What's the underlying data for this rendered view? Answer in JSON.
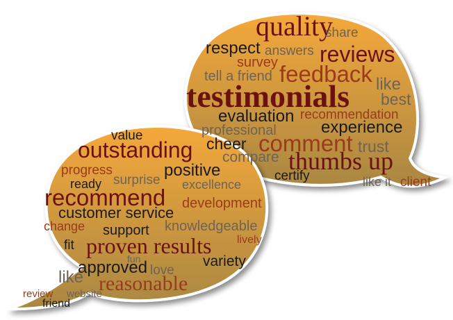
{
  "colors": {
    "bubble_top": "#f4a83a",
    "bubble_bottom": "#a98743",
    "outline": "#ffffff",
    "dark_red": "#6b1210",
    "red": "#9b3a1c",
    "black": "#1a1a1a",
    "gray": "#6e6356"
  },
  "right_bubble_words": [
    {
      "name": "word-quality",
      "text": "quality",
      "color": "dark_red"
    },
    {
      "name": "word-share",
      "text": "share",
      "color": "gray"
    },
    {
      "name": "word-respect",
      "text": "respect",
      "color": "black"
    },
    {
      "name": "word-answers",
      "text": "answers",
      "color": "gray"
    },
    {
      "name": "word-reviews",
      "text": "reviews",
      "color": "dark_red"
    },
    {
      "name": "word-survey",
      "text": "survey",
      "color": "red"
    },
    {
      "name": "word-tell-a-friend",
      "text": "tell a friend",
      "color": "gray"
    },
    {
      "name": "word-feedback",
      "text": "feedback",
      "color": "red"
    },
    {
      "name": "word-like",
      "text": "like",
      "color": "gray"
    },
    {
      "name": "word-testimonials",
      "text": "testimonials",
      "color": "dark_red"
    },
    {
      "name": "word-best",
      "text": "best",
      "color": "gray"
    },
    {
      "name": "word-evaluation",
      "text": "evaluation",
      "color": "black"
    },
    {
      "name": "word-recommendation",
      "text": "recommendation",
      "color": "red"
    },
    {
      "name": "word-professional",
      "text": "professional",
      "color": "gray"
    },
    {
      "name": "word-experience",
      "text": "experience",
      "color": "black"
    },
    {
      "name": "word-cheer",
      "text": "cheer",
      "color": "black"
    },
    {
      "name": "word-comment",
      "text": "comment",
      "color": "red"
    },
    {
      "name": "word-trust",
      "text": "trust",
      "color": "gray"
    },
    {
      "name": "word-compare",
      "text": "compare",
      "color": "gray"
    },
    {
      "name": "word-thumbs-up",
      "text": "thumbs up",
      "color": "dark_red"
    },
    {
      "name": "word-certify",
      "text": "certify",
      "color": "black"
    },
    {
      "name": "word-like-it",
      "text": "like it",
      "color": "gray"
    },
    {
      "name": "word-client",
      "text": "client",
      "color": "red"
    }
  ],
  "left_bubble_words": [
    {
      "name": "word-value",
      "text": "value",
      "color": "black"
    },
    {
      "name": "word-outstanding",
      "text": "outstanding",
      "color": "dark_red"
    },
    {
      "name": "word-progress",
      "text": "progress",
      "color": "red"
    },
    {
      "name": "word-positive",
      "text": "positive",
      "color": "black"
    },
    {
      "name": "word-ready",
      "text": "ready",
      "color": "black"
    },
    {
      "name": "word-surprise",
      "text": "surprise",
      "color": "gray"
    },
    {
      "name": "word-excellence",
      "text": "excellence",
      "color": "gray"
    },
    {
      "name": "word-recommend",
      "text": "recommend",
      "color": "dark_red"
    },
    {
      "name": "word-development",
      "text": "development",
      "color": "red"
    },
    {
      "name": "word-customer-service",
      "text": "customer service",
      "color": "black"
    },
    {
      "name": "word-change",
      "text": "change",
      "color": "red"
    },
    {
      "name": "word-support",
      "text": "support",
      "color": "black"
    },
    {
      "name": "word-knowledgeable",
      "text": "knowledgeable",
      "color": "gray"
    },
    {
      "name": "word-fit",
      "text": "fit",
      "color": "black"
    },
    {
      "name": "word-proven-results",
      "text": "proven results",
      "color": "dark_red"
    },
    {
      "name": "word-lively",
      "text": "lively",
      "color": "red"
    },
    {
      "name": "word-fun",
      "text": "fun",
      "color": "gray"
    },
    {
      "name": "word-variety",
      "text": "variety",
      "color": "black"
    },
    {
      "name": "word-approved",
      "text": "approved",
      "color": "black"
    },
    {
      "name": "word-love",
      "text": "love",
      "color": "gray"
    },
    {
      "name": "word-like-left",
      "text": "like",
      "color": "gray"
    },
    {
      "name": "word-reasonable",
      "text": "reasonable",
      "color": "red"
    },
    {
      "name": "word-review",
      "text": "review",
      "color": "red"
    },
    {
      "name": "word-website",
      "text": "website",
      "color": "gray"
    },
    {
      "name": "word-friend",
      "text": "friend",
      "color": "black"
    }
  ]
}
